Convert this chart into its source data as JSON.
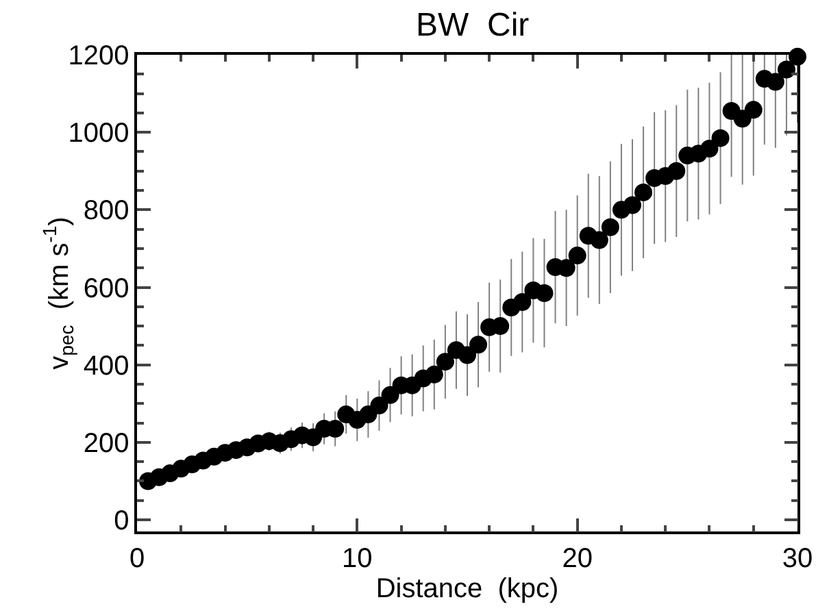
{
  "chart_data": {
    "type": "scatter",
    "title": "BW  Cir",
    "xlabel": "Distance  (kpc)",
    "ylabel": "v$_{pec}$  (km s$^{-1}$)",
    "x": [
      0.5,
      1,
      1.5,
      2,
      2.5,
      3,
      3.5,
      4,
      4.5,
      5,
      5.5,
      6,
      6.5,
      7,
      7.5,
      8,
      8.5,
      9,
      9.5,
      10,
      10.5,
      11,
      11.5,
      12,
      12.5,
      13,
      13.5,
      14,
      14.5,
      15,
      15.5,
      16,
      16.5,
      17,
      17.5,
      18,
      18.5,
      19,
      19.5,
      20,
      20.5,
      21,
      21.5,
      22,
      22.5,
      23,
      23.5,
      24,
      24.5,
      25,
      25.5,
      26,
      26.5,
      27,
      27.5,
      28,
      28.5,
      29,
      29.5,
      30
    ],
    "series": [
      {
        "color": "#000000",
        "values": [
          100,
          110,
          120,
          132,
          143,
          153,
          163,
          173,
          180,
          187,
          197,
          203,
          198,
          208,
          218,
          213,
          235,
          235,
          272,
          258,
          272,
          295,
          322,
          347,
          347,
          365,
          375,
          408,
          438,
          425,
          452,
          497,
          500,
          548,
          562,
          592,
          585,
          652,
          650,
          682,
          733,
          722,
          755,
          800,
          812,
          845,
          882,
          887,
          900,
          940,
          945,
          958,
          985,
          1055,
          1035,
          1058,
          1138,
          1130,
          1162,
          1195
        ],
        "errors": [
          3,
          4,
          5,
          6,
          8,
          9,
          11,
          13,
          15,
          18,
          21,
          24,
          27,
          30,
          33,
          36,
          40,
          45,
          50,
          55,
          60,
          65,
          70,
          75,
          80,
          85,
          90,
          95,
          100,
          105,
          110,
          115,
          120,
          125,
          130,
          135,
          140,
          145,
          150,
          155,
          160,
          165,
          170,
          170,
          170,
          170,
          170,
          170,
          170,
          170,
          170,
          170,
          170,
          170,
          170,
          170,
          170,
          170,
          170,
          170
        ]
      }
    ],
    "xlim": [
      0,
      30
    ],
    "xticks": [
      0,
      10,
      20,
      30
    ],
    "ylim": [
      -30,
      1200
    ],
    "yticks": [
      0,
      200,
      400,
      600,
      800,
      1000,
      1200
    ],
    "grid": false,
    "marker": "circle"
  }
}
